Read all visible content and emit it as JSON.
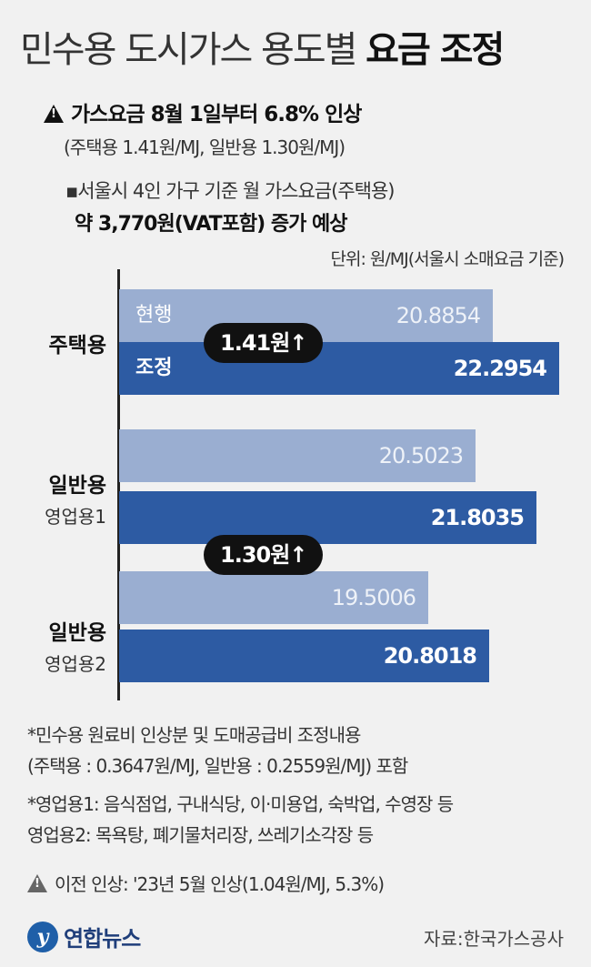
{
  "header": {
    "title_plain": "민수용 도시가스 용도별",
    "title_bold": "요금 조정",
    "notice1": "가스요금 8월 1일부터 6.8% 인상",
    "notice1_sub": "(주택용 1.41원/MJ, 일반용 1.30원/MJ)",
    "notice2": "▪서울시 4인 가구 기준 월 가스요금(주택용)",
    "notice2_sub": "약 3,770원(VAT포함) 증가 예상",
    "unit": "단위: 원/MJ(서울시 소매요금 기준)"
  },
  "icons": {
    "warning": "warning-triangle-icon",
    "logo": "yonhap-logo-icon"
  },
  "colors": {
    "current": "#9aaed1",
    "adjusted": "#2d5ba3",
    "pill": "#111111"
  },
  "chart_data": {
    "type": "bar",
    "orientation": "horizontal",
    "categories": [
      {
        "main": "주택용",
        "sub": ""
      },
      {
        "main": "일반용",
        "sub": "영업용1"
      },
      {
        "main": "일반용",
        "sub": "영업용2"
      }
    ],
    "series": [
      {
        "name": "현행",
        "values": [
          20.8854,
          20.5023,
          19.5006
        ]
      },
      {
        "name": "조정",
        "values": [
          22.2954,
          21.8035,
          20.8018
        ]
      }
    ],
    "value_labels": {
      "current": [
        "20.8854",
        "20.5023",
        "19.5006"
      ],
      "adjusted": [
        "22.2954",
        "21.8035",
        "20.8018"
      ]
    },
    "annotations": [
      "1.41원↑",
      "1.30원↑"
    ]
  },
  "footnotes": {
    "f1": "*민수용 원료비 인상분 및 도매공급비 조정내용",
    "f1_sub": "(주택용 : 0.3647원/MJ, 일반용 : 0.2559원/MJ) 포함",
    "f2": "*영업용1: 음식점업, 구내식당, 이·미용업, 숙박업, 수영장 등",
    "f2_sub": " 영업용2: 목욕탕, 폐기물처리장, 쓰레기소각장 등",
    "f3": "이전 인상: '23년 5월 인상(1.04원/MJ, 5.3%)"
  },
  "footer": {
    "logo_mark": "y",
    "logo_text": "연합뉴스",
    "source": "자료:한국가스공사"
  }
}
